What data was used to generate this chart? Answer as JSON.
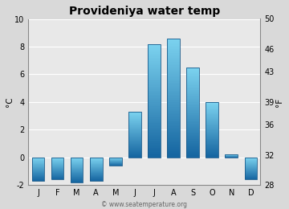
{
  "title": "Provideniya water temp",
  "months": [
    "J",
    "F",
    "M",
    "A",
    "M",
    "J",
    "J",
    "A",
    "S",
    "O",
    "N",
    "D"
  ],
  "values_c": [
    -1.7,
    -1.6,
    -1.8,
    -1.7,
    -0.6,
    3.3,
    8.2,
    8.6,
    6.5,
    4.0,
    0.2,
    -1.6
  ],
  "ylim_c": [
    -2,
    10
  ],
  "ylim_f": [
    28,
    50
  ],
  "yticks_c": [
    -2,
    0,
    2,
    4,
    6,
    8,
    10
  ],
  "yticks_f": [
    28,
    32,
    36,
    39,
    43,
    46,
    50
  ],
  "ylabel_left": "°C",
  "ylabel_right": "°F",
  "bg_color": "#d9d9d9",
  "plot_bg": "#e8e8e8",
  "bar_top_color": "#7dd4f0",
  "bar_bottom_color": "#1565a0",
  "bar_edge_color": "#1a5a8a",
  "watermark": "© www.seatemperature.org",
  "title_fontsize": 10,
  "axis_fontsize": 7.5,
  "tick_fontsize": 7
}
